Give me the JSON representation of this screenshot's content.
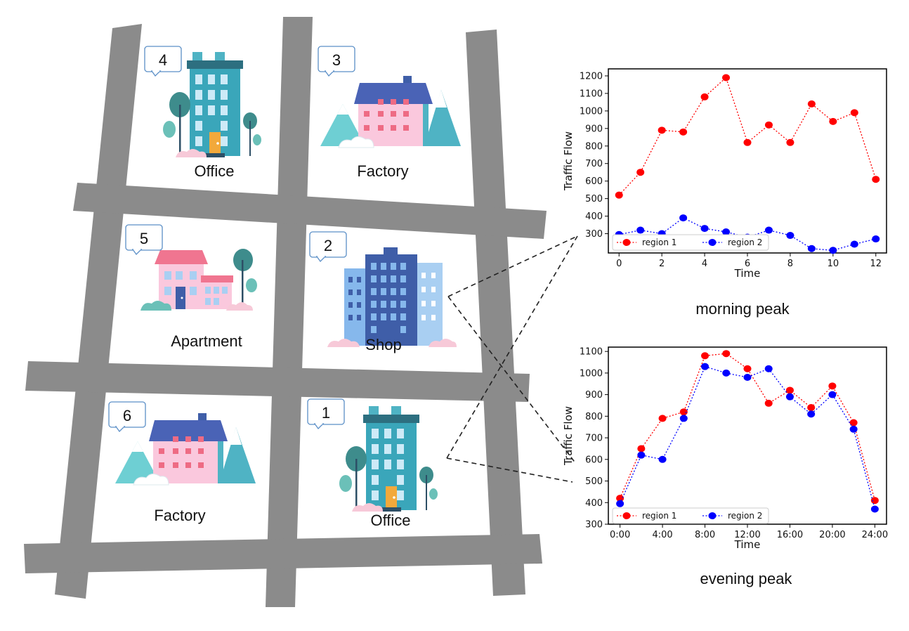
{
  "map": {
    "blocks": [
      {
        "id": "block-4",
        "number": "4",
        "label": "Office",
        "kind": "office"
      },
      {
        "id": "block-3",
        "number": "3",
        "label": "Factory",
        "kind": "factory"
      },
      {
        "id": "block-5",
        "number": "5",
        "label": "Apartment",
        "kind": "apartment"
      },
      {
        "id": "block-2",
        "number": "2",
        "label": "Shop",
        "kind": "shop"
      },
      {
        "id": "block-6",
        "number": "6",
        "label": "Factory",
        "kind": "factory"
      },
      {
        "id": "block-1",
        "number": "1",
        "label": "Office",
        "kind": "office"
      }
    ]
  },
  "charts": {
    "morning_caption": "morning peak",
    "evening_caption": "evening peak"
  },
  "chart_data": [
    {
      "type": "line",
      "title": "",
      "xlabel": "Time",
      "ylabel": "Traffic Flow",
      "x": [
        0,
        1,
        2,
        3,
        4,
        5,
        6,
        7,
        8,
        9,
        10,
        11,
        12
      ],
      "x_ticks": [
        "0",
        "2",
        "4",
        "6",
        "8",
        "10",
        "12"
      ],
      "y_ticks": [
        "300",
        "400",
        "500",
        "600",
        "700",
        "800",
        "900",
        "1000",
        "1100",
        "1200"
      ],
      "xlim": [
        -0.5,
        12.5
      ],
      "ylim": [
        190,
        1240
      ],
      "legend": "bottom-left",
      "series": [
        {
          "name": "region 1",
          "color": "#ff0000",
          "values": [
            520,
            650,
            890,
            880,
            1080,
            1190,
            820,
            920,
            820,
            1040,
            940,
            990,
            610
          ]
        },
        {
          "name": "region 2",
          "color": "#0000ff",
          "values": [
            295,
            320,
            300,
            390,
            330,
            310,
            280,
            320,
            290,
            215,
            205,
            240,
            270
          ]
        }
      ]
    },
    {
      "type": "line",
      "title": "",
      "xlabel": "Time",
      "ylabel": "Traffic Flow",
      "x": [
        0,
        2,
        4,
        6,
        8,
        10,
        12,
        14,
        16,
        18,
        20,
        22,
        24
      ],
      "x_ticks": [
        "0:00",
        "4:00",
        "8:00",
        "12:00",
        "16:00",
        "20:00",
        "24:00"
      ],
      "y_ticks": [
        "300",
        "400",
        "500",
        "600",
        "700",
        "800",
        "900",
        "1000",
        "1100"
      ],
      "xlim": [
        -1.1,
        25.1
      ],
      "ylim": [
        300,
        1120
      ],
      "legend": "bottom-left",
      "series": [
        {
          "name": "region 1",
          "color": "#ff0000",
          "values": [
            420,
            650,
            790,
            820,
            1080,
            1090,
            1020,
            860,
            920,
            840,
            940,
            770,
            410
          ]
        },
        {
          "name": "region 2",
          "color": "#0000ff",
          "values": [
            395,
            620,
            600,
            790,
            1030,
            1000,
            980,
            1020,
            890,
            810,
            900,
            740,
            370
          ]
        }
      ]
    }
  ]
}
